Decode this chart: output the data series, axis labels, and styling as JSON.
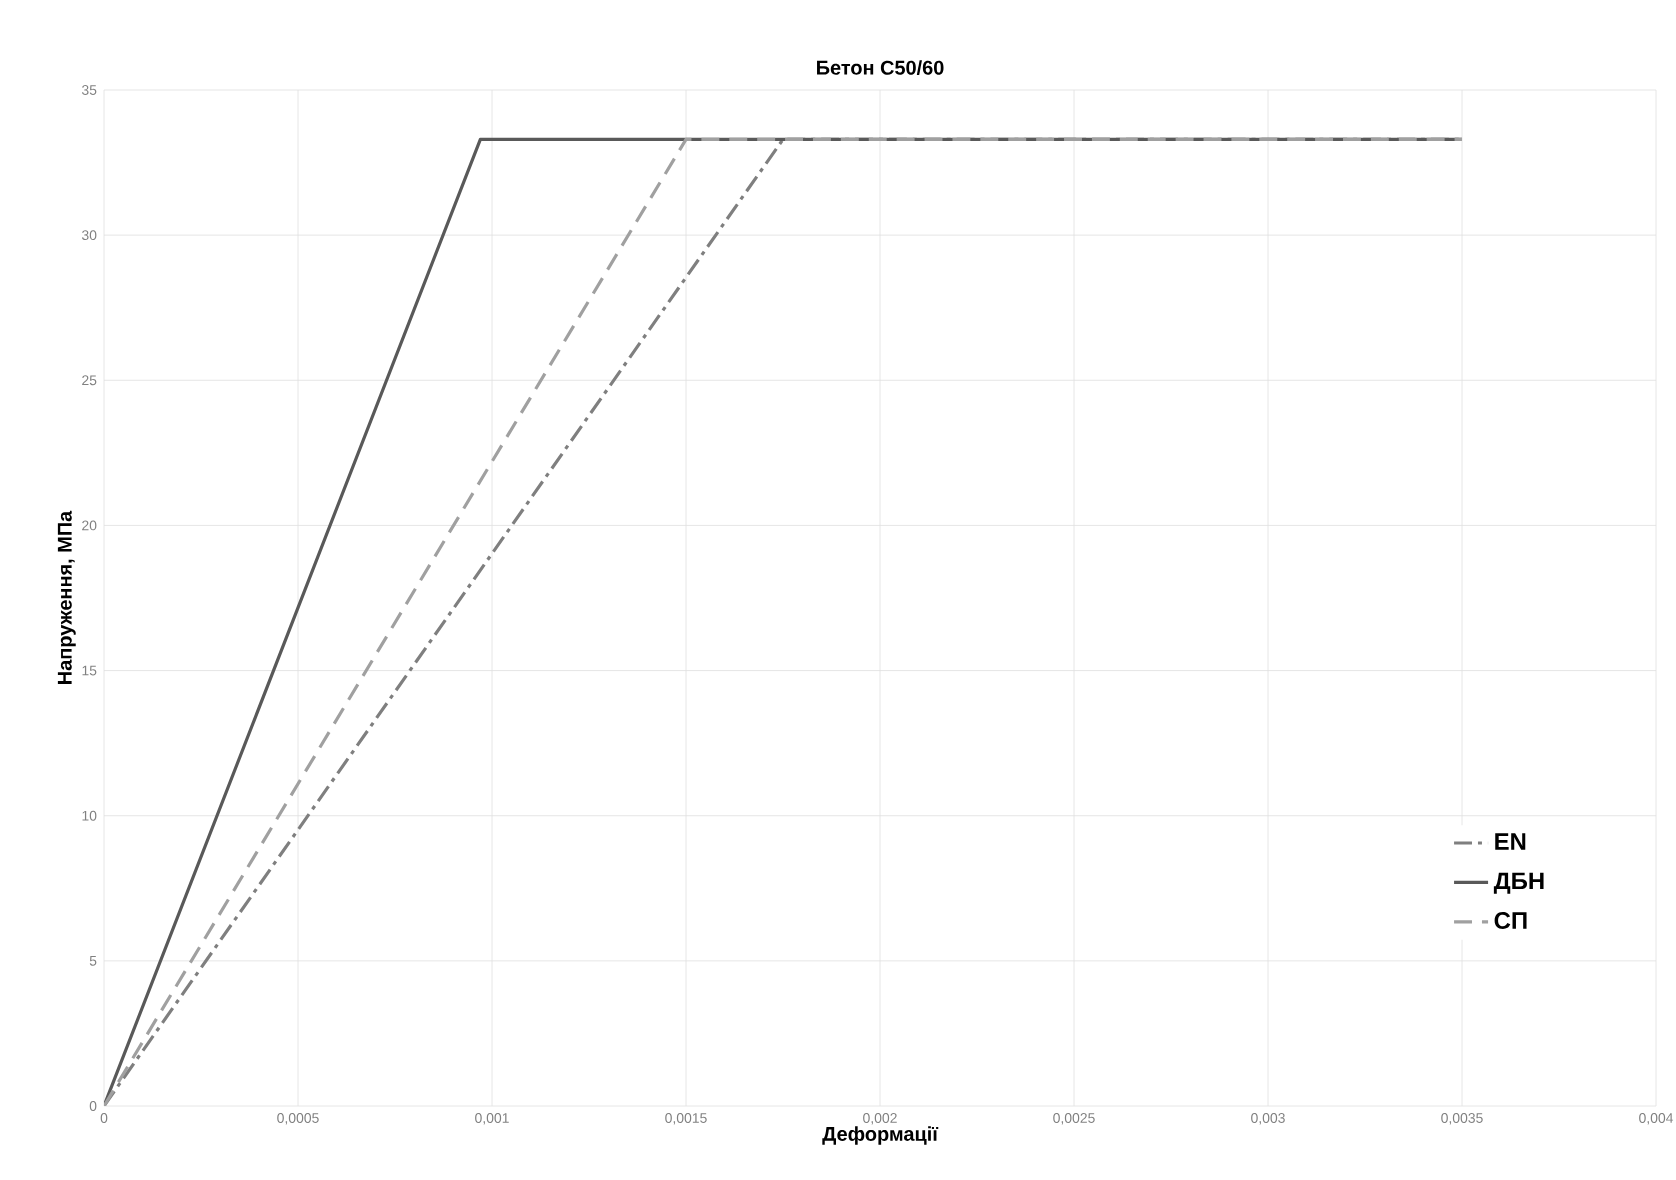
{
  "chart_data": {
    "type": "line",
    "title": "Бетон C50/60",
    "xlabel": "Деформації",
    "ylabel": "Напруження, МПа",
    "xlim": [
      0,
      0.004
    ],
    "ylim": [
      0,
      35
    ],
    "xticks": [
      {
        "value": 0,
        "label": "0"
      },
      {
        "value": 0.0005,
        "label": "0,0005"
      },
      {
        "value": 0.001,
        "label": "0,001"
      },
      {
        "value": 0.0015,
        "label": "0,0015"
      },
      {
        "value": 0.002,
        "label": "0,002"
      },
      {
        "value": 0.0025,
        "label": "0,0025"
      },
      {
        "value": 0.003,
        "label": "0,003"
      },
      {
        "value": 0.0035,
        "label": "0,0035"
      },
      {
        "value": 0.004,
        "label": "0,004"
      }
    ],
    "yticks": [
      0,
      5,
      10,
      15,
      20,
      25,
      30,
      35
    ],
    "grid": true,
    "legend": "right",
    "series": [
      {
        "name": "EN",
        "color": "#7f7f7f",
        "line_style": "dashdot",
        "x": [
          0,
          0.00175,
          0.0035
        ],
        "values": [
          0,
          33.3,
          33.3
        ]
      },
      {
        "name": "ДБН",
        "color": "#595959",
        "line_style": "solid",
        "x": [
          0,
          0.00097,
          0.0035
        ],
        "values": [
          0,
          33.3,
          33.3
        ]
      },
      {
        "name": "СП",
        "color": "#a0a0a0",
        "line_style": "dashed",
        "x": [
          0,
          0.0015,
          0.0035
        ],
        "values": [
          0,
          33.3,
          33.3
        ]
      }
    ]
  }
}
